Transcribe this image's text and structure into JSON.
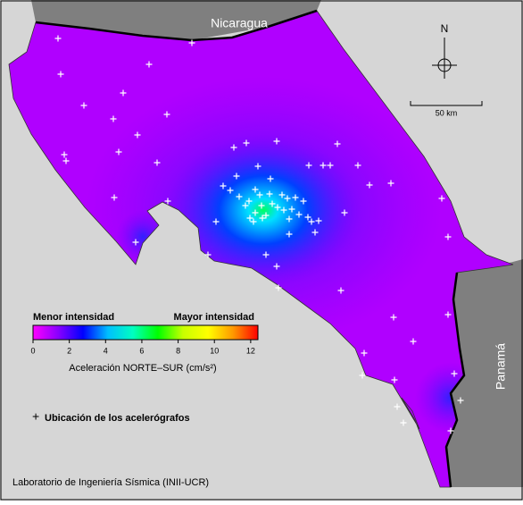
{
  "labels": {
    "north_country": "Nicaragua",
    "south_country": "Panamá",
    "compass": "N",
    "scale": "50 km"
  },
  "colorbar": {
    "low_label": "Menor intensidad",
    "high_label": "Mayor intensidad",
    "title": "Aceleración NORTE–SUR (cm/s²)",
    "lim": [
      0,
      12.4
    ],
    "ticks": [
      0,
      2,
      4,
      6,
      8,
      10,
      12
    ],
    "colors": [
      "#ff00ff",
      "#8a00ff",
      "#0000ff",
      "#00bfff",
      "#00ffc0",
      "#00ff00",
      "#c8ff00",
      "#ffff00",
      "#ff9900",
      "#ff0000"
    ]
  },
  "legend": "Ubicación de los acelerógrafos",
  "credit": "Laboratorio de Ingeniería Sísmica (INII-UCR)"
}
